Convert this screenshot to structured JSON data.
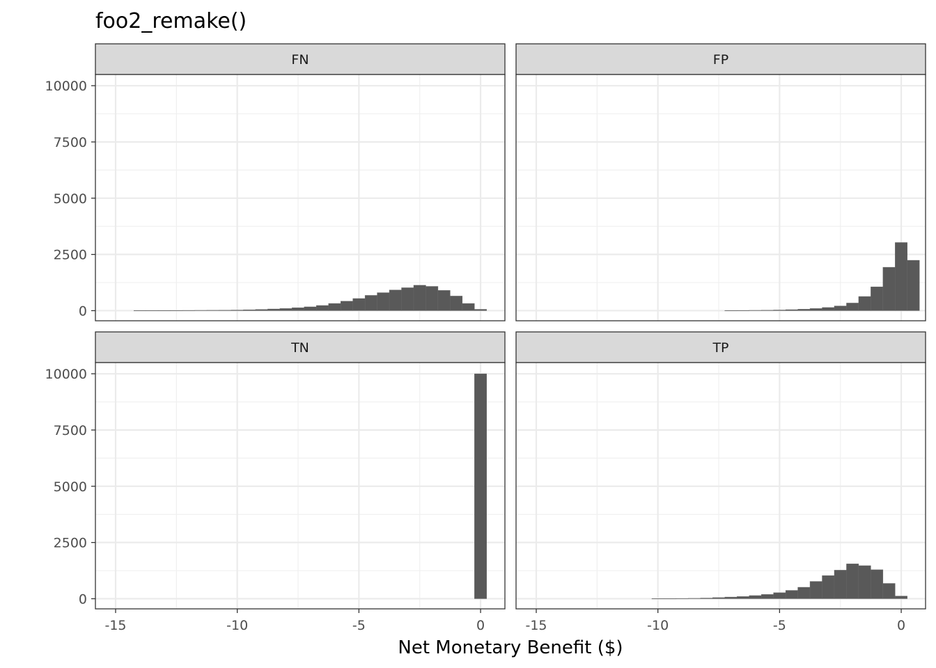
{
  "chart_data": {
    "type": "bar",
    "title": "foo2_remake()",
    "xlabel": "Net Monetary Benefit ($)",
    "ylabel": "",
    "xlim": [
      -15.83,
      1.0
    ],
    "ylim": [
      -450,
      10500
    ],
    "x_ticks": [
      -15,
      -10,
      -5,
      0
    ],
    "x_tick_labels": [
      "-15",
      "-10",
      "-5",
      "0"
    ],
    "y_ticks": [
      0,
      2500,
      5000,
      7500,
      10000
    ],
    "y_tick_labels": [
      "0",
      "2500",
      "5000",
      "7500",
      "10000"
    ],
    "bin_width": 0.5,
    "bar_color": "#595959",
    "grid": true,
    "panels": [
      {
        "label": "FN",
        "bins": [
          {
            "x": -14,
            "count": 5
          },
          {
            "x": -13.5,
            "count": 6
          },
          {
            "x": -13,
            "count": 8
          },
          {
            "x": -12.5,
            "count": 10
          },
          {
            "x": -12,
            "count": 12
          },
          {
            "x": -11.5,
            "count": 15
          },
          {
            "x": -11,
            "count": 18
          },
          {
            "x": -10.5,
            "count": 22
          },
          {
            "x": -10,
            "count": 28
          },
          {
            "x": -9.5,
            "count": 40
          },
          {
            "x": -9,
            "count": 55
          },
          {
            "x": -8.5,
            "count": 75
          },
          {
            "x": -8,
            "count": 95
          },
          {
            "x": -7.5,
            "count": 130
          },
          {
            "x": -7,
            "count": 170
          },
          {
            "x": -6.5,
            "count": 230
          },
          {
            "x": -6,
            "count": 320
          },
          {
            "x": -5.5,
            "count": 420
          },
          {
            "x": -5,
            "count": 540
          },
          {
            "x": -4.5,
            "count": 680
          },
          {
            "x": -4,
            "count": 800
          },
          {
            "x": -3.5,
            "count": 920
          },
          {
            "x": -3,
            "count": 1020
          },
          {
            "x": -2.5,
            "count": 1130
          },
          {
            "x": -2,
            "count": 1080
          },
          {
            "x": -1.5,
            "count": 900
          },
          {
            "x": -1,
            "count": 650
          },
          {
            "x": -0.5,
            "count": 320
          },
          {
            "x": 0,
            "count": 60
          }
        ]
      },
      {
        "label": "FP",
        "bins": [
          {
            "x": -7,
            "count": 5
          },
          {
            "x": -6.5,
            "count": 10
          },
          {
            "x": -6,
            "count": 15
          },
          {
            "x": -5.5,
            "count": 20
          },
          {
            "x": -5,
            "count": 30
          },
          {
            "x": -4.5,
            "count": 45
          },
          {
            "x": -4,
            "count": 65
          },
          {
            "x": -3.5,
            "count": 95
          },
          {
            "x": -3,
            "count": 140
          },
          {
            "x": -2.5,
            "count": 210
          },
          {
            "x": -2,
            "count": 340
          },
          {
            "x": -1.5,
            "count": 630
          },
          {
            "x": -1,
            "count": 1060
          },
          {
            "x": -0.5,
            "count": 1930
          },
          {
            "x": 0,
            "count": 3030
          },
          {
            "x": 0.5,
            "count": 2240
          }
        ]
      },
      {
        "label": "TN",
        "bins": [
          {
            "x": 0,
            "count": 10000
          }
        ]
      },
      {
        "label": "TP",
        "bins": [
          {
            "x": -10,
            "count": 5
          },
          {
            "x": -9.5,
            "count": 8
          },
          {
            "x": -9,
            "count": 12
          },
          {
            "x": -8.5,
            "count": 18
          },
          {
            "x": -8,
            "count": 30
          },
          {
            "x": -7.5,
            "count": 50
          },
          {
            "x": -7,
            "count": 75
          },
          {
            "x": -6.5,
            "count": 100
          },
          {
            "x": -6,
            "count": 140
          },
          {
            "x": -5.5,
            "count": 190
          },
          {
            "x": -5,
            "count": 270
          },
          {
            "x": -4.5,
            "count": 370
          },
          {
            "x": -4,
            "count": 510
          },
          {
            "x": -3.5,
            "count": 770
          },
          {
            "x": -3,
            "count": 1030
          },
          {
            "x": -2.5,
            "count": 1270
          },
          {
            "x": -2,
            "count": 1550
          },
          {
            "x": -1.5,
            "count": 1470
          },
          {
            "x": -1,
            "count": 1290
          },
          {
            "x": -0.5,
            "count": 680
          },
          {
            "x": 0,
            "count": 120
          }
        ]
      }
    ]
  }
}
